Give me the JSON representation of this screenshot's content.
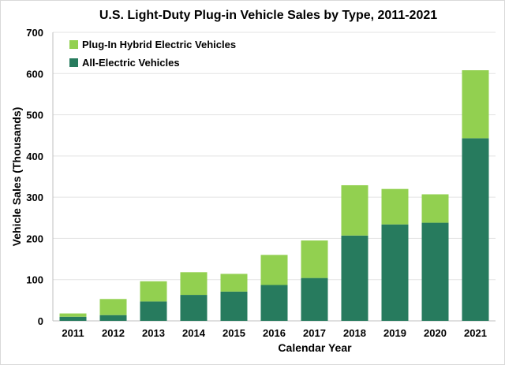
{
  "chart_data": {
    "type": "bar",
    "stacked": true,
    "title": "U.S. Light-Duty Plug-in Vehicle Sales by Type, 2011-2021",
    "xlabel": "Calendar Year",
    "ylabel": "Vehicle Sales (Thousands)",
    "ylim": [
      0,
      700
    ],
    "yticks": [
      0,
      100,
      200,
      300,
      400,
      500,
      600,
      700
    ],
    "grid": true,
    "legend_position": "top-left",
    "categories": [
      "2011",
      "2012",
      "2013",
      "2014",
      "2015",
      "2016",
      "2017",
      "2018",
      "2019",
      "2020",
      "2021"
    ],
    "series": [
      {
        "name": "All-Electric Vehicles",
        "color": "#277b5e",
        "values": [
          10,
          14,
          47,
          63,
          71,
          87,
          104,
          207,
          234,
          238,
          443
        ]
      },
      {
        "name": "Plug-In Hybrid Electric Vehicles",
        "color": "#92d050",
        "values": [
          8,
          39,
          49,
          55,
          43,
          73,
          91,
          122,
          86,
          69,
          165
        ]
      }
    ]
  }
}
